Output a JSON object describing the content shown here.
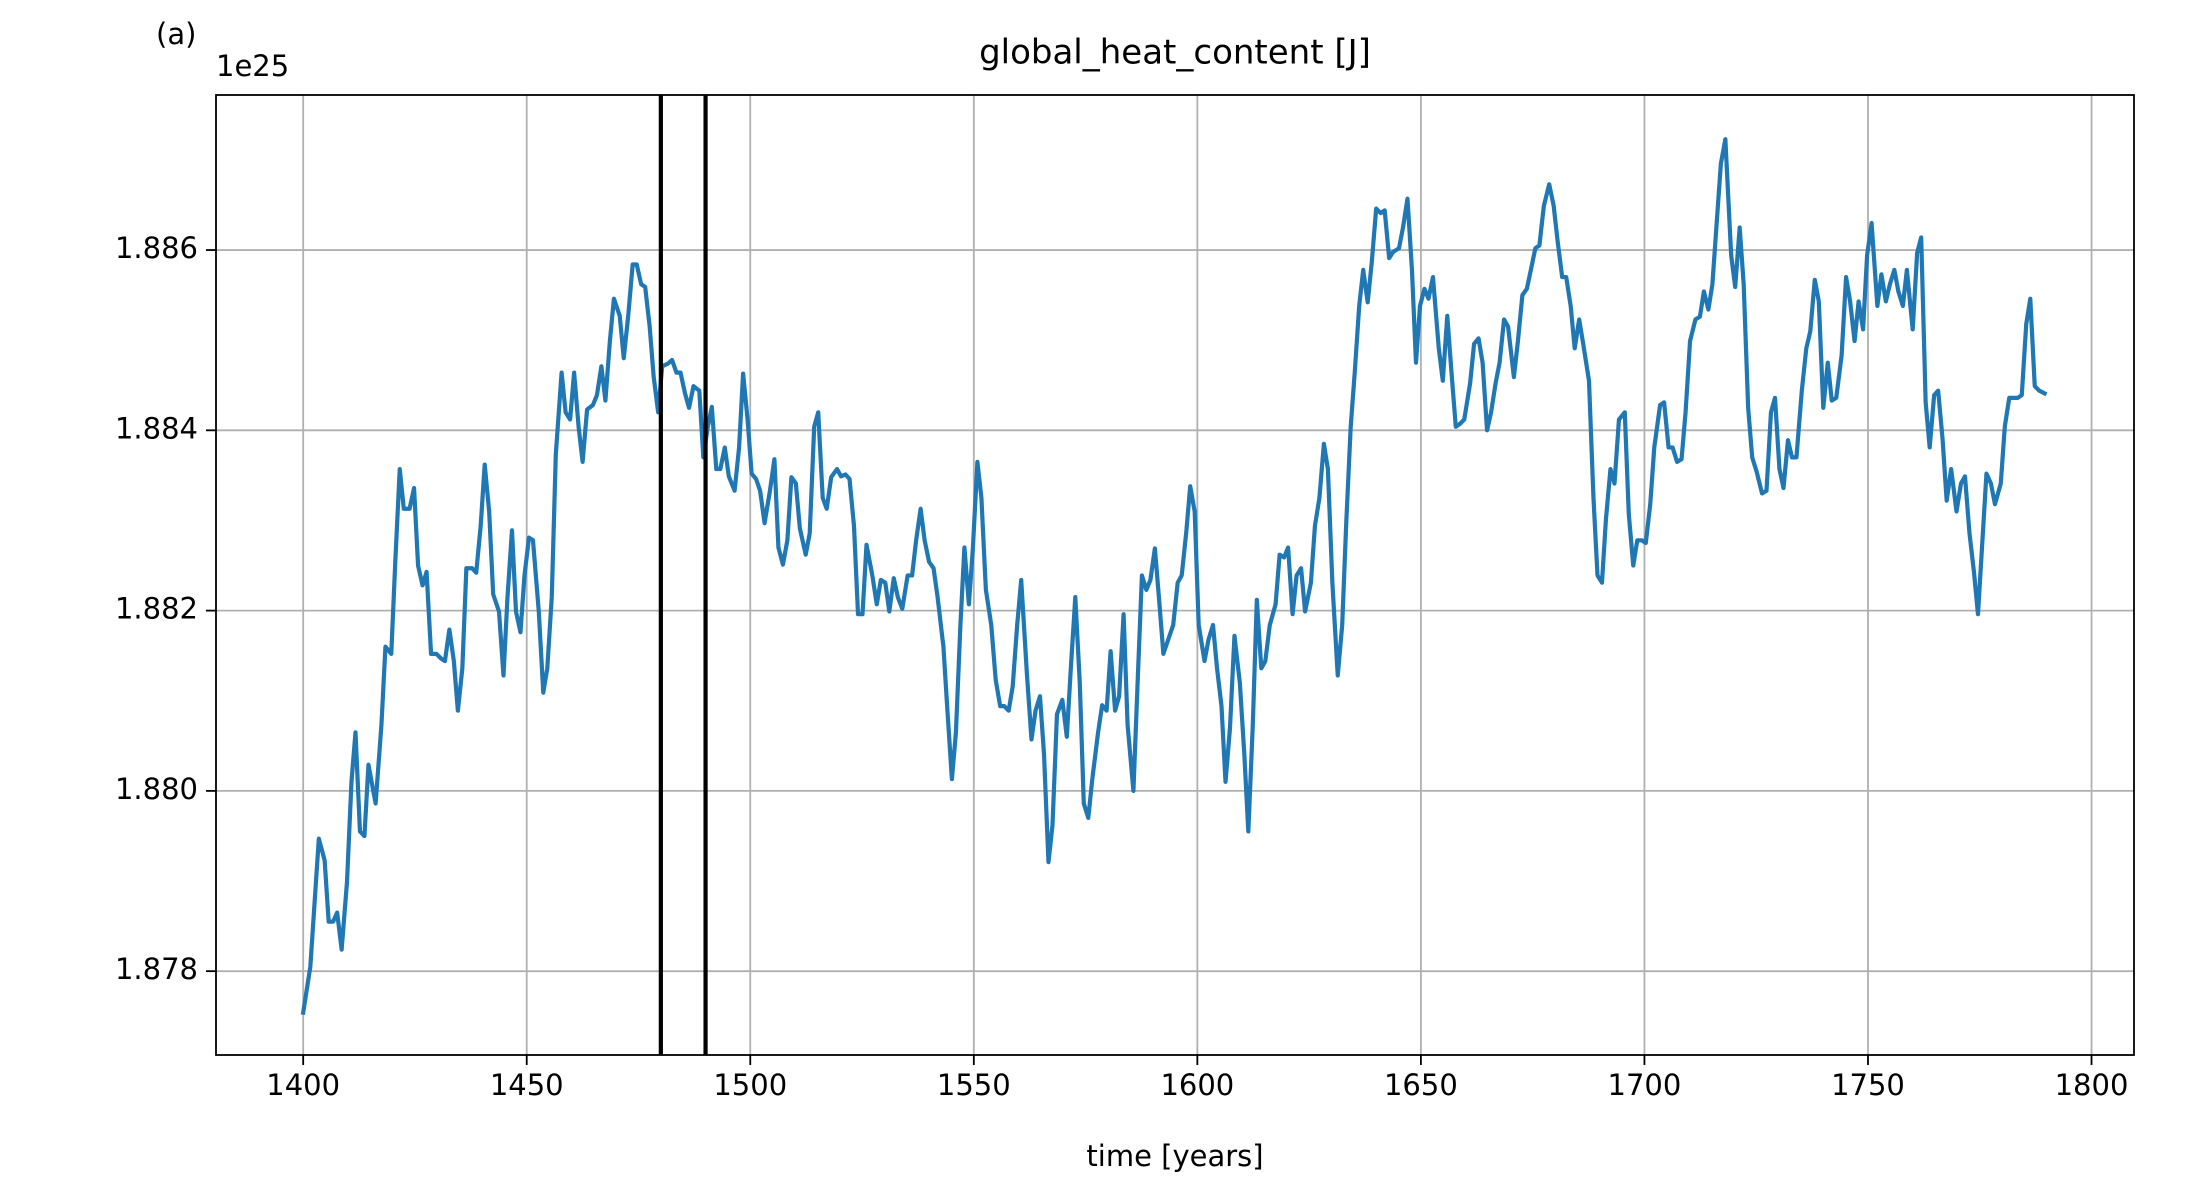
{
  "chart_data": {
    "type": "line",
    "panel_label": "(a)",
    "title": "global_heat_content [J]",
    "y_offset_label": "1e25",
    "xlabel": "time [years]",
    "color": "#1f77b4",
    "grid": true,
    "xlim": [
      1380.5,
      1809.5
    ],
    "ylim": [
      1.87707,
      1.88772
    ],
    "xticks": [
      1400,
      1450,
      1500,
      1550,
      1600,
      1650,
      1700,
      1750,
      1800
    ],
    "yticks": [
      1.878,
      {
        "value": 1.88,
        "label": "1.880"
      },
      1.882,
      1.884,
      1.886
    ],
    "vlines": {
      "x": [
        1480,
        1490
      ],
      "color": "#000000"
    },
    "x": [
      1400,
      1401.6,
      1403.5,
      1404.8,
      1405.7,
      1406.7,
      1407.6,
      1408.6,
      1409.8,
      1410.8,
      1411.7,
      1412.7,
      1413.7,
      1414.6,
      1416.2,
      1417.5,
      1418.4,
      1419.7,
      1420.6,
      1421.6,
      1422.5,
      1423.8,
      1424.8,
      1425.7,
      1426.7,
      1427.6,
      1428.6,
      1429.8,
      1430.8,
      1431.7,
      1432.7,
      1433.7,
      1434.6,
      1435.6,
      1436.5,
      1437.8,
      1438.7,
      1439.7,
      1440.6,
      1441.6,
      1442.5,
      1443.8,
      1444.8,
      1445.7,
      1446.7,
      1447.6,
      1448.6,
      1449.5,
      1450.5,
      1451.4,
      1452.7,
      1453.7,
      1454.6,
      1455.6,
      1456.5,
      1457.8,
      1458.7,
      1459.7,
      1460.6,
      1461.6,
      1462.5,
      1463.5,
      1464.8,
      1465.7,
      1466.7,
      1467.6,
      1468.6,
      1469.5,
      1470.8,
      1471.7,
      1472.7,
      1473.7,
      1474.6,
      1475.6,
      1476.5,
      1477.5,
      1478.4,
      1479.4,
      1480.3,
      1481.6,
      1482.5,
      1483.5,
      1484.4,
      1485.4,
      1486.3,
      1487.3,
      1488.6,
      1489.5,
      1490.5,
      1491.4,
      1492.4,
      1493.3,
      1494.3,
      1495.2,
      1496.5,
      1497.5,
      1498.4,
      1499.4,
      1500.3,
      1501.3,
      1502.2,
      1503.2,
      1504.4,
      1505.4,
      1506.3,
      1507.3,
      1508.3,
      1509.2,
      1510.2,
      1511.1,
      1512.4,
      1513.3,
      1514.3,
      1515.2,
      1516.2,
      1517.1,
      1518.1,
      1519.4,
      1520.3,
      1521.3,
      1522.2,
      1523.2,
      1524.1,
      1525.1,
      1526.0,
      1527.3,
      1528.3,
      1529.2,
      1530.2,
      1531.1,
      1532.1,
      1533.0,
      1534.0,
      1535.2,
      1536.2,
      1537.1,
      1538.1,
      1539.0,
      1540.0,
      1541.0,
      1541.9,
      1543.2,
      1544.1,
      1545.1,
      1546.0,
      1547.0,
      1547.9,
      1548.9,
      1549.8,
      1550.8,
      1551.7,
      1552.7,
      1553.9,
      1554.9,
      1555.9,
      1556.8,
      1557.8,
      1558.7,
      1559.7,
      1560.6,
      1561.9,
      1562.9,
      1563.8,
      1564.8,
      1565.7,
      1566.7,
      1567.6,
      1568.6,
      1569.8,
      1570.8,
      1571.7,
      1572.7,
      1573.7,
      1574.6,
      1575.6,
      1576.5,
      1577.8,
      1578.7,
      1579.7,
      1580.6,
      1581.6,
      1582.5,
      1583.5,
      1584.4,
      1585.7,
      1586.7,
      1587.6,
      1588.6,
      1589.5,
      1590.5,
      1591.4,
      1592.4,
      1593.7,
      1594.6,
      1595.6,
      1596.5,
      1597.5,
      1598.4,
      1599.4,
      1600.3,
      1601.6,
      1602.5,
      1603.5,
      1604.4,
      1605.4,
      1606.3,
      1607.3,
      1608.3,
      1609.5,
      1610.5,
      1611.4,
      1612.4,
      1613.3,
      1614.3,
      1615.2,
      1616.2,
      1617.5,
      1618.4,
      1619.4,
      1620.3,
      1621.3,
      1622.2,
      1623.2,
      1624.1,
      1625.4,
      1626.3,
      1627.3,
      1628.3,
      1629.2,
      1630.2,
      1631.4,
      1632.4,
      1633.3,
      1634.3,
      1635.2,
      1636.2,
      1637.1,
      1638.1,
      1639.0,
      1640.0,
      1641.0,
      1641.9,
      1642.9,
      1643.8,
      1645.1,
      1646.0,
      1647.0,
      1648.0,
      1648.9,
      1649.8,
      1650.8,
      1651.7,
      1652.7,
      1654.0,
      1654.9,
      1655.9,
      1656.8,
      1657.8,
      1658.7,
      1659.7,
      1661.0,
      1661.9,
      1662.9,
      1663.8,
      1664.8,
      1665.7,
      1666.7,
      1667.6,
      1668.6,
      1669.5,
      1670.8,
      1671.7,
      1672.7,
      1673.7,
      1674.6,
      1675.6,
      1676.5,
      1677.5,
      1678.7,
      1679.7,
      1680.6,
      1681.6,
      1682.5,
      1683.5,
      1684.4,
      1685.4,
      1686.3,
      1687.6,
      1688.6,
      1689.5,
      1690.5,
      1691.4,
      1692.4,
      1693.3,
      1694.3,
      1695.6,
      1696.5,
      1697.5,
      1698.4,
      1699.4,
      1700.3,
      1701.3,
      1702.2,
      1703.5,
      1704.4,
      1705.4,
      1706.3,
      1707.3,
      1708.3,
      1709.2,
      1710.2,
      1711.4,
      1712.4,
      1713.3,
      1714.3,
      1715.2,
      1716.2,
      1717.1,
      1718.1,
      1719.4,
      1720.3,
      1721.3,
      1722.2,
      1723.2,
      1724.1,
      1725.1,
      1726.3,
      1727.3,
      1728.3,
      1729.2,
      1730.2,
      1731.1,
      1732.1,
      1733.0,
      1734.0,
      1735.2,
      1736.2,
      1737.1,
      1738.1,
      1739.0,
      1740.0,
      1741.0,
      1741.9,
      1742.9,
      1744.1,
      1745.1,
      1746.0,
      1747.0,
      1747.9,
      1748.9,
      1749.8,
      1750.8,
      1752.1,
      1753.0,
      1754.0,
      1754.9,
      1755.9,
      1756.8,
      1757.8,
      1758.7,
      1760.0,
      1761.0,
      1761.9,
      1762.9,
      1763.8,
      1764.8,
      1765.7,
      1766.7,
      1767.6,
      1768.6,
      1769.8,
      1770.8,
      1771.7,
      1772.7,
      1773.7,
      1774.6,
      1775.6,
      1776.5,
      1777.5,
      1778.4,
      1779.7,
      1780.6,
      1781.6,
      1782.5,
      1783.5,
      1784.4,
      1785.4,
      1786.3,
      1787.3,
      1788.3,
      1789.5
    ],
    "values": [
      1.87754,
      1.87805,
      1.87947,
      1.87923,
      1.87855,
      1.87855,
      1.87865,
      1.87824,
      1.87899,
      1.8801,
      1.88065,
      1.87955,
      1.8795,
      1.88029,
      1.87986,
      1.88073,
      1.8816,
      1.88152,
      1.88254,
      1.88357,
      1.88313,
      1.88313,
      1.88336,
      1.8825,
      1.88228,
      1.88243,
      1.88152,
      1.88152,
      1.88147,
      1.88144,
      1.88179,
      1.88144,
      1.88089,
      1.88136,
      1.88247,
      1.88247,
      1.88242,
      1.88294,
      1.88362,
      1.8831,
      1.88218,
      1.88199,
      1.88128,
      1.88215,
      1.88289,
      1.88199,
      1.88176,
      1.88239,
      1.88281,
      1.88278,
      1.88199,
      1.88109,
      1.88136,
      1.88215,
      1.88373,
      1.88464,
      1.8842,
      1.88412,
      1.88464,
      1.88404,
      1.88365,
      1.88423,
      1.88428,
      1.88439,
      1.88471,
      1.88433,
      1.88499,
      1.88546,
      1.88527,
      1.8848,
      1.88527,
      1.88584,
      1.88584,
      1.88562,
      1.88559,
      1.88515,
      1.88459,
      1.8842,
      1.88471,
      1.88474,
      1.88478,
      1.88464,
      1.88464,
      1.88441,
      1.88425,
      1.88449,
      1.88444,
      1.8837,
      1.88404,
      1.88426,
      1.88357,
      1.88357,
      1.88381,
      1.88349,
      1.88333,
      1.88381,
      1.88463,
      1.88412,
      1.88352,
      1.88346,
      1.88333,
      1.88297,
      1.88333,
      1.88368,
      1.8827,
      1.88251,
      1.88278,
      1.88348,
      1.88341,
      1.88291,
      1.88262,
      1.88286,
      1.88404,
      1.8842,
      1.88325,
      1.88313,
      1.88348,
      1.88357,
      1.88349,
      1.88351,
      1.88346,
      1.88294,
      1.88196,
      1.88196,
      1.88273,
      1.88239,
      1.88207,
      1.88234,
      1.88231,
      1.88199,
      1.88236,
      1.88215,
      1.88202,
      1.88239,
      1.88239,
      1.88278,
      1.88313,
      1.88278,
      1.88254,
      1.88247,
      1.88215,
      1.8816,
      1.88089,
      1.88013,
      1.88065,
      1.88184,
      1.8827,
      1.88207,
      1.8827,
      1.88365,
      1.88325,
      1.88223,
      1.88184,
      1.88123,
      1.88094,
      1.88094,
      1.88089,
      1.88116,
      1.88184,
      1.88234,
      1.88128,
      1.88057,
      1.88089,
      1.88105,
      1.88041,
      1.87921,
      1.87962,
      1.88085,
      1.88101,
      1.8806,
      1.88136,
      1.88215,
      1.8812,
      1.87986,
      1.8797,
      1.88013,
      1.88065,
      1.88095,
      1.88089,
      1.88155,
      1.88089,
      1.88105,
      1.88196,
      1.88073,
      1.88,
      1.88128,
      1.88239,
      1.88223,
      1.88234,
      1.88269,
      1.88215,
      1.88152,
      1.88171,
      1.88184,
      1.88231,
      1.88239,
      1.88286,
      1.88338,
      1.8831,
      1.88184,
      1.88144,
      1.88168,
      1.88184,
      1.88136,
      1.88094,
      1.8801,
      1.8807,
      1.88172,
      1.8812,
      1.88041,
      1.87955,
      1.88073,
      1.88212,
      1.88136,
      1.88144,
      1.88184,
      1.88207,
      1.88262,
      1.88259,
      1.8827,
      1.88196,
      1.88239,
      1.88247,
      1.88199,
      1.88231,
      1.88294,
      1.88325,
      1.88385,
      1.88357,
      1.88231,
      1.88128,
      1.88184,
      1.88297,
      1.88404,
      1.88464,
      1.88538,
      1.88578,
      1.88542,
      1.88586,
      1.88646,
      1.88641,
      1.88644,
      1.88591,
      1.88598,
      1.88602,
      1.88625,
      1.88657,
      1.88578,
      1.88475,
      1.88538,
      1.88557,
      1.88546,
      1.8857,
      1.88491,
      1.88455,
      1.88527,
      1.88467,
      1.88404,
      1.88407,
      1.88412,
      1.88452,
      1.88496,
      1.88502,
      1.88475,
      1.884,
      1.8842,
      1.88452,
      1.88475,
      1.88523,
      1.88515,
      1.88459,
      1.88499,
      1.8855,
      1.88557,
      1.88578,
      1.88602,
      1.88605,
      1.88649,
      1.88673,
      1.88649,
      1.88609,
      1.8857,
      1.8857,
      1.88538,
      1.88491,
      1.88523,
      1.88496,
      1.88455,
      1.88325,
      1.88239,
      1.88231,
      1.88302,
      1.88357,
      1.88341,
      1.88412,
      1.8842,
      1.88307,
      1.8825,
      1.88278,
      1.88278,
      1.88275,
      1.88318,
      1.88381,
      1.88428,
      1.88431,
      1.88381,
      1.88381,
      1.88365,
      1.88368,
      1.8842,
      1.88499,
      1.88523,
      1.88526,
      1.88554,
      1.88534,
      1.88562,
      1.88633,
      1.88696,
      1.88723,
      1.88594,
      1.88559,
      1.88625,
      1.88562,
      1.88425,
      1.8837,
      1.88354,
      1.8833,
      1.88333,
      1.8842,
      1.88436,
      1.88357,
      1.88336,
      1.88389,
      1.8837,
      1.8837,
      1.88444,
      1.88491,
      1.8851,
      1.88567,
      1.88543,
      1.88425,
      1.88475,
      1.88433,
      1.88436,
      1.88483,
      1.8857,
      1.88543,
      1.88499,
      1.88543,
      1.88512,
      1.88594,
      1.8863,
      1.88538,
      1.88573,
      1.88543,
      1.88562,
      1.88578,
      1.88554,
      1.88538,
      1.88578,
      1.88512,
      1.88597,
      1.88614,
      1.88431,
      1.88381,
      1.88439,
      1.88444,
      1.88389,
      1.88322,
      1.88357,
      1.8831,
      1.88341,
      1.88349,
      1.88286,
      1.88243,
      1.88196,
      1.88278,
      1.88352,
      1.88341,
      1.88318,
      1.88341,
      1.88404,
      1.88436,
      1.88436,
      1.88436,
      1.88439,
      1.88518,
      1.88546,
      1.88449,
      1.88444,
      1.88441
    ]
  }
}
